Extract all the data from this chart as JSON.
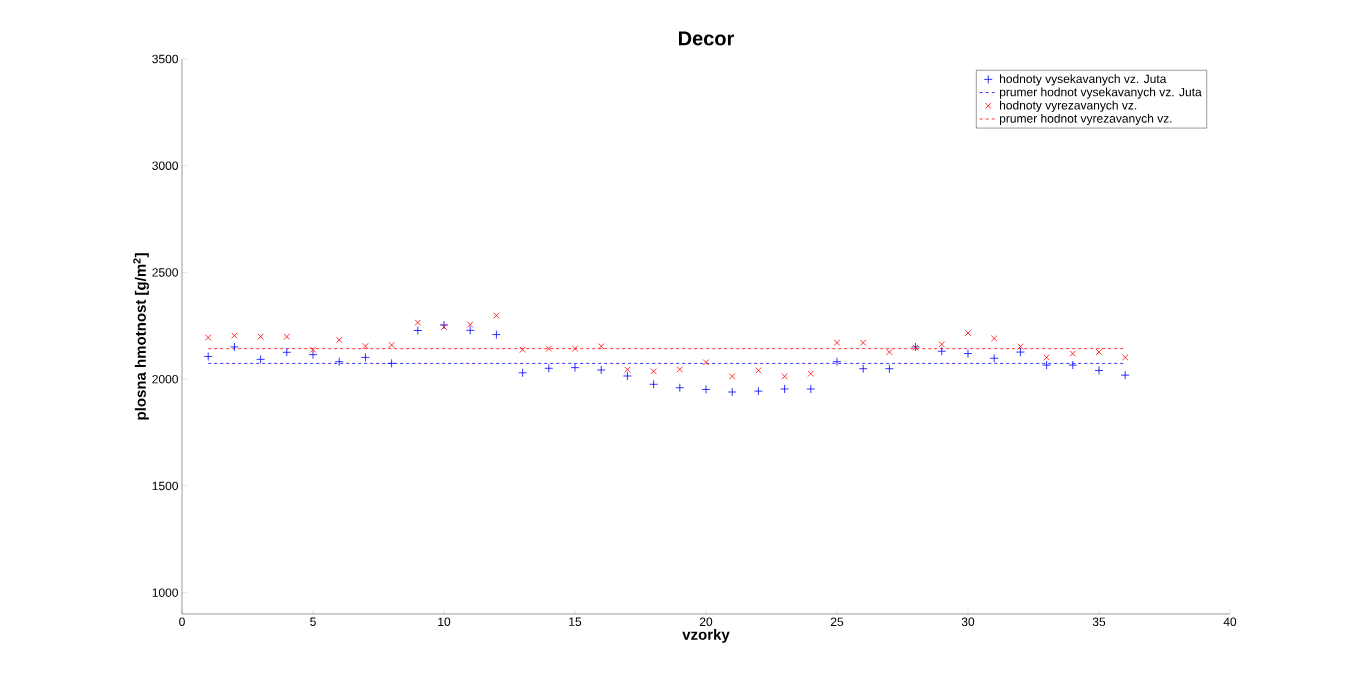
{
  "chart_data": {
    "type": "scatter",
    "title": "Decor",
    "xlabel": "vzorky",
    "ylabel": "plosna hmotnost [g/m$^{2}$]",
    "xlim": [
      0,
      40
    ],
    "ylim": [
      900,
      3500
    ],
    "xticks": [
      0,
      5,
      10,
      15,
      20,
      25,
      30,
      35,
      40
    ],
    "yticks": [
      1000,
      1500,
      2000,
      2500,
      3000,
      3500
    ],
    "grid": false,
    "legend": "top right",
    "series": [
      {
        "name": "hodnoty vysekavanych vz. Juta",
        "marker": "plus",
        "color": "#0000ff",
        "x": [
          1,
          2,
          3,
          4,
          5,
          6,
          7,
          8,
          9,
          10,
          11,
          12,
          13,
          14,
          15,
          16,
          17,
          18,
          19,
          20,
          21,
          22,
          23,
          24,
          25,
          26,
          27,
          28,
          29,
          30,
          31,
          32,
          33,
          34,
          35,
          36
        ],
        "values": [
          2106,
          2151,
          2093,
          2126,
          2115,
          2082,
          2102,
          2074,
          2228,
          2254,
          2229,
          2209,
          2030,
          2051,
          2054,
          2043,
          2015,
          1976,
          1960,
          1952,
          1940,
          1944,
          1954,
          1954,
          2082,
          2049,
          2049,
          2151,
          2131,
          2120,
          2098,
          2127,
          2066,
          2066,
          2041,
          2019
        ]
      },
      {
        "name": "prumer hodnot vysekavanych vz. Juta",
        "type": "line",
        "line_style": "dashed",
        "color": "#0000ff",
        "x": [
          1,
          36
        ],
        "values": [
          2074,
          2074
        ]
      },
      {
        "name": "hodnoty vyrezavanych vz.",
        "marker": "cross",
        "color": "#ff0000",
        "x": [
          1,
          2,
          3,
          4,
          5,
          6,
          7,
          8,
          9,
          10,
          11,
          12,
          13,
          14,
          15,
          16,
          17,
          18,
          19,
          20,
          21,
          22,
          23,
          24,
          25,
          26,
          27,
          28,
          29,
          30,
          31,
          32,
          33,
          34,
          35,
          36
        ],
        "values": [
          2195,
          2204,
          2199,
          2199,
          2138,
          2184,
          2155,
          2160,
          2265,
          2244,
          2256,
          2298,
          2138,
          2143,
          2143,
          2154,
          2045,
          2037,
          2046,
          2079,
          2013,
          2041,
          2013,
          2026,
          2171,
          2171,
          2127,
          2148,
          2163,
          2216,
          2191,
          2153,
          2102,
          2120,
          2127,
          2102
        ]
      },
      {
        "name": "prumer hodnot vyrezavanych vz.",
        "type": "line",
        "line_style": "dashed",
        "color": "#ff0000",
        "x": [
          1,
          36
        ],
        "values": [
          2143,
          2143
        ]
      }
    ]
  }
}
